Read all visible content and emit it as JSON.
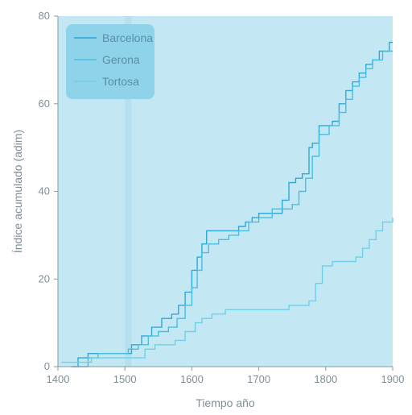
{
  "chart_data": {
    "type": "line",
    "xlabel": "Tiempo año",
    "ylabel": "Índice acumulado (adim)",
    "xlim": [
      1400,
      1900
    ],
    "ylim": [
      0,
      80
    ],
    "xticks": [
      1400,
      1500,
      1600,
      1700,
      1800,
      1900
    ],
    "yticks": [
      0,
      20,
      40,
      60,
      80
    ],
    "grid": false,
    "legend_position": "top-left",
    "colors": {
      "plot_bg": "#c3e8f4",
      "shade_band": "#b6e0ef",
      "legend_bg": "#8fd3ea",
      "axis": "#8a9aa2"
    },
    "series": [
      {
        "name": "Barcelona",
        "color": "#2fa8d8",
        "points": [
          [
            1420,
            0
          ],
          [
            1430,
            2
          ],
          [
            1445,
            3
          ],
          [
            1500,
            3
          ],
          [
            1510,
            5
          ],
          [
            1525,
            7
          ],
          [
            1540,
            9
          ],
          [
            1555,
            11
          ],
          [
            1570,
            12
          ],
          [
            1580,
            14
          ],
          [
            1590,
            17
          ],
          [
            1600,
            22
          ],
          [
            1608,
            25
          ],
          [
            1615,
            28
          ],
          [
            1622,
            31
          ],
          [
            1640,
            31
          ],
          [
            1660,
            31
          ],
          [
            1670,
            32
          ],
          [
            1680,
            33
          ],
          [
            1690,
            34
          ],
          [
            1700,
            35
          ],
          [
            1720,
            35
          ],
          [
            1735,
            38
          ],
          [
            1745,
            42
          ],
          [
            1755,
            43
          ],
          [
            1765,
            44
          ],
          [
            1775,
            50
          ],
          [
            1780,
            51
          ],
          [
            1790,
            55
          ],
          [
            1810,
            56
          ],
          [
            1820,
            60
          ],
          [
            1830,
            63
          ],
          [
            1840,
            65
          ],
          [
            1850,
            67
          ],
          [
            1860,
            69
          ],
          [
            1870,
            70
          ],
          [
            1880,
            72
          ],
          [
            1895,
            74
          ],
          [
            1900,
            74
          ]
        ]
      },
      {
        "name": "Gerona",
        "color": "#47bfe3",
        "points": [
          [
            1430,
            0
          ],
          [
            1445,
            2
          ],
          [
            1460,
            3
          ],
          [
            1490,
            3
          ],
          [
            1505,
            4
          ],
          [
            1520,
            5
          ],
          [
            1535,
            7
          ],
          [
            1550,
            8
          ],
          [
            1565,
            9
          ],
          [
            1578,
            11
          ],
          [
            1590,
            14
          ],
          [
            1600,
            18
          ],
          [
            1608,
            22
          ],
          [
            1615,
            26
          ],
          [
            1625,
            28
          ],
          [
            1640,
            29
          ],
          [
            1655,
            30
          ],
          [
            1670,
            31
          ],
          [
            1685,
            33
          ],
          [
            1700,
            34
          ],
          [
            1720,
            36
          ],
          [
            1740,
            36
          ],
          [
            1750,
            37
          ],
          [
            1760,
            40
          ],
          [
            1770,
            43
          ],
          [
            1780,
            48
          ],
          [
            1790,
            53
          ],
          [
            1805,
            55
          ],
          [
            1820,
            58
          ],
          [
            1830,
            61
          ],
          [
            1840,
            64
          ],
          [
            1850,
            66
          ],
          [
            1860,
            68
          ],
          [
            1870,
            70
          ],
          [
            1885,
            72
          ],
          [
            1900,
            72
          ]
        ]
      },
      {
        "name": "Tortosa",
        "color": "#6fcfe8",
        "points": [
          [
            1405,
            1
          ],
          [
            1430,
            1
          ],
          [
            1450,
            2
          ],
          [
            1510,
            2
          ],
          [
            1530,
            4
          ],
          [
            1545,
            5
          ],
          [
            1560,
            5
          ],
          [
            1575,
            6
          ],
          [
            1590,
            8
          ],
          [
            1605,
            10
          ],
          [
            1615,
            11
          ],
          [
            1630,
            12
          ],
          [
            1650,
            13
          ],
          [
            1680,
            13
          ],
          [
            1700,
            13
          ],
          [
            1730,
            13
          ],
          [
            1745,
            14
          ],
          [
            1760,
            14
          ],
          [
            1775,
            15
          ],
          [
            1785,
            19
          ],
          [
            1795,
            23
          ],
          [
            1810,
            24
          ],
          [
            1830,
            24
          ],
          [
            1845,
            25
          ],
          [
            1855,
            27
          ],
          [
            1865,
            29
          ],
          [
            1875,
            31
          ],
          [
            1885,
            33
          ],
          [
            1900,
            34
          ]
        ]
      }
    ]
  }
}
